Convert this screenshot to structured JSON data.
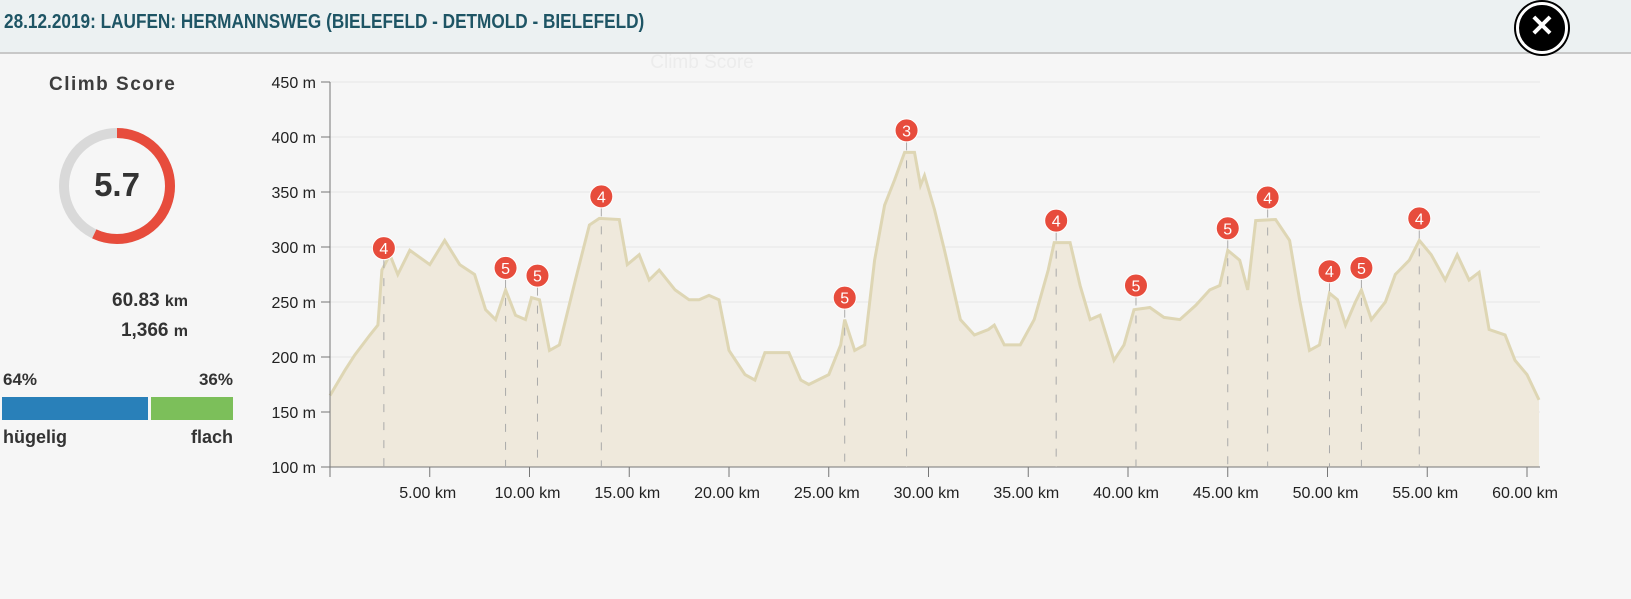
{
  "header": {
    "title": "28.12.2019: LAUFEN: HERMANNSWEG (BIELEFELD - DETMOLD - BIELEFELD)",
    "close_icon": "close-icon"
  },
  "sidebar": {
    "climb_score_title": "Climb Score",
    "climb_score": "5.7",
    "climb_score_fraction": 0.57,
    "distance_value": "60.83",
    "distance_unit": "km",
    "ascent_value": "1,366",
    "ascent_unit": "m",
    "hilly_pct": "64%",
    "flat_pct": "36%",
    "hilly_fraction": 0.64,
    "hilly_label": "hügelig",
    "flat_label": "flach",
    "colors": {
      "hilly": "#2980b9",
      "flat": "#7cbf5a",
      "score": "#e74c3c",
      "ring": "#d9d9d9"
    }
  },
  "chart_data": {
    "type": "area",
    "title": "Climb Score",
    "xlabel": "",
    "ylabel": "",
    "xlim": [
      0,
      60.6
    ],
    "ylim": [
      100,
      450
    ],
    "x_ticks": [
      0,
      5,
      10,
      15,
      20,
      25,
      30,
      35,
      40,
      45,
      50,
      55,
      60
    ],
    "x_tick_labels": [
      "",
      "5.00 km",
      "10.00 km",
      "15.00 km",
      "20.00 km",
      "25.00 km",
      "30.00 km",
      "35.00 km",
      "40.00 km",
      "45.00 km",
      "50.00 km",
      "55.00 km",
      "60.00 km"
    ],
    "y_ticks": [
      100,
      150,
      200,
      250,
      300,
      350,
      400,
      450
    ],
    "y_tick_labels": [
      "100 m",
      "150 m",
      "200 m",
      "250 m",
      "300 m",
      "350 m",
      "400 m",
      "450 m"
    ],
    "grid": true,
    "colors": {
      "line": "#ded6b4",
      "fill": "#efe9dc",
      "marker": "#e74c3c"
    },
    "points": [
      [
        0,
        165
      ],
      [
        0.75,
        188
      ],
      [
        1.25,
        202
      ],
      [
        2,
        220
      ],
      [
        2.4,
        229
      ],
      [
        2.6,
        279
      ],
      [
        3,
        293
      ],
      [
        3.4,
        275
      ],
      [
        4,
        297
      ],
      [
        5,
        284
      ],
      [
        5.75,
        306
      ],
      [
        6.5,
        284
      ],
      [
        7.25,
        275
      ],
      [
        7.8,
        243
      ],
      [
        8.3,
        234
      ],
      [
        8.8,
        261
      ],
      [
        9.3,
        238
      ],
      [
        9.8,
        234
      ],
      [
        10.1,
        254
      ],
      [
        10.5,
        252
      ],
      [
        11,
        206
      ],
      [
        11.5,
        211
      ],
      [
        12.3,
        270
      ],
      [
        13,
        320
      ],
      [
        13.5,
        326
      ],
      [
        14.5,
        325
      ],
      [
        14.9,
        284
      ],
      [
        15.5,
        293
      ],
      [
        16,
        270
      ],
      [
        16.5,
        279
      ],
      [
        17.3,
        261
      ],
      [
        18,
        252
      ],
      [
        18.5,
        252
      ],
      [
        19,
        256
      ],
      [
        19.5,
        252
      ],
      [
        20,
        206
      ],
      [
        20.8,
        184
      ],
      [
        21.3,
        179
      ],
      [
        21.8,
        204
      ],
      [
        23,
        204
      ],
      [
        23.6,
        179
      ],
      [
        24,
        175
      ],
      [
        25,
        184
      ],
      [
        25.6,
        211
      ],
      [
        25.8,
        234
      ],
      [
        26.3,
        206
      ],
      [
        26.8,
        211
      ],
      [
        27.3,
        288
      ],
      [
        27.8,
        338
      ],
      [
        28.3,
        361
      ],
      [
        28.8,
        386
      ],
      [
        29.3,
        386
      ],
      [
        29.6,
        356
      ],
      [
        29.8,
        365
      ],
      [
        30.3,
        334
      ],
      [
        30.8,
        297
      ],
      [
        31.6,
        234
      ],
      [
        32.3,
        220
      ],
      [
        33,
        225
      ],
      [
        33.3,
        229
      ],
      [
        33.8,
        211
      ],
      [
        34.6,
        211
      ],
      [
        35.3,
        234
      ],
      [
        36,
        279
      ],
      [
        36.3,
        304
      ],
      [
        37.1,
        304
      ],
      [
        37.6,
        265
      ],
      [
        38.1,
        234
      ],
      [
        38.6,
        238
      ],
      [
        39.3,
        197
      ],
      [
        39.8,
        211
      ],
      [
        40.3,
        243
      ],
      [
        41.1,
        245
      ],
      [
        41.8,
        236
      ],
      [
        42.6,
        234
      ],
      [
        43.4,
        247
      ],
      [
        44.1,
        261
      ],
      [
        44.6,
        265
      ],
      [
        45,
        297
      ],
      [
        45.6,
        288
      ],
      [
        46,
        261
      ],
      [
        46.4,
        324
      ],
      [
        47.4,
        325
      ],
      [
        48.1,
        306
      ],
      [
        48.6,
        252
      ],
      [
        49.1,
        206
      ],
      [
        49.6,
        211
      ],
      [
        50.1,
        258
      ],
      [
        50.5,
        252
      ],
      [
        50.9,
        229
      ],
      [
        51.4,
        250
      ],
      [
        51.7,
        261
      ],
      [
        52.2,
        234
      ],
      [
        52.9,
        250
      ],
      [
        53.4,
        275
      ],
      [
        54.1,
        288
      ],
      [
        54.6,
        306
      ],
      [
        55.2,
        293
      ],
      [
        55.9,
        270
      ],
      [
        56.5,
        293
      ],
      [
        57.1,
        270
      ],
      [
        57.6,
        277
      ],
      [
        58.1,
        225
      ],
      [
        58.9,
        220
      ],
      [
        59.4,
        197
      ],
      [
        60,
        184
      ],
      [
        60.6,
        161
      ]
    ],
    "climb_markers": [
      {
        "km": 2.7,
        "m": 279,
        "category": "4"
      },
      {
        "km": 8.8,
        "m": 261,
        "category": "5"
      },
      {
        "km": 10.4,
        "m": 254,
        "category": "5"
      },
      {
        "km": 13.6,
        "m": 326,
        "category": "4"
      },
      {
        "km": 25.8,
        "m": 234,
        "category": "5"
      },
      {
        "km": 28.9,
        "m": 386,
        "category": "3"
      },
      {
        "km": 36.4,
        "m": 304,
        "category": "4"
      },
      {
        "km": 40.4,
        "m": 245,
        "category": "5"
      },
      {
        "km": 45,
        "m": 297,
        "category": "5"
      },
      {
        "km": 47,
        "m": 325,
        "category": "4"
      },
      {
        "km": 50.1,
        "m": 258,
        "category": "4"
      },
      {
        "km": 51.7,
        "m": 261,
        "category": "5"
      },
      {
        "km": 54.6,
        "m": 306,
        "category": "4"
      }
    ]
  }
}
